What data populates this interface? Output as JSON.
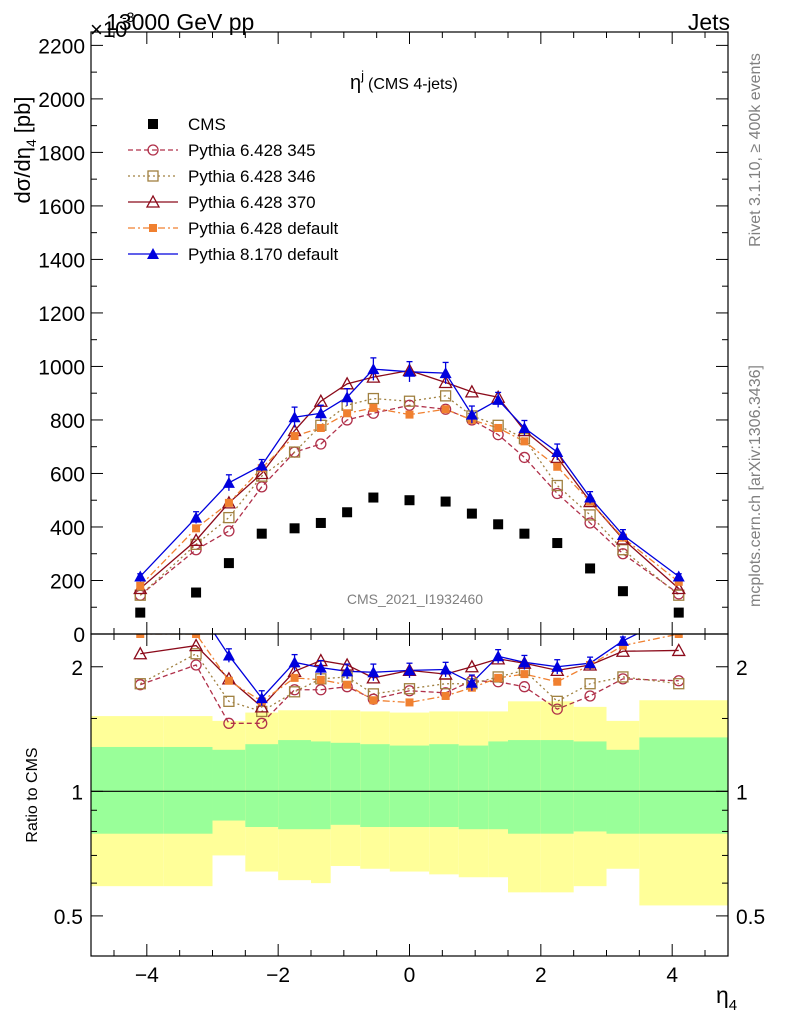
{
  "header": {
    "left": "13000 GeV pp",
    "right": "Jets",
    "exponent": "×10",
    "exponent_power": "-3"
  },
  "side_labels": {
    "rivet": "Rivet 3.1.10, ≥ 400k events",
    "mcplots": "mcplots.cern.ch [arXiv:1306.3436]"
  },
  "watermark": "CMS_2021_I1932460",
  "plot_title": "η",
  "plot_title_sup": "j",
  "plot_title_suffix": "(CMS 4-jets)",
  "ylabel_main": "dσ/dη",
  "ylabel_main_sub": "4",
  "ylabel_main_unit": "[pb]",
  "ylabel_ratio": "Ratio to CMS",
  "xlabel": "η",
  "xlabel_sub": "4",
  "chart_data": [
    {
      "type": "scatter",
      "panel": "main",
      "xlim": [
        -4.85,
        4.85
      ],
      "ylim": [
        0,
        2250
      ],
      "xticks": [
        -4,
        -2,
        0,
        2,
        4
      ],
      "yticks": [
        0,
        200,
        400,
        600,
        800,
        1000,
        1200,
        1400,
        1600,
        1800,
        2000,
        2200
      ],
      "x": [
        -4.1,
        -3.25,
        -2.75,
        -2.25,
        -1.75,
        -1.35,
        -0.95,
        -0.55,
        0,
        0.55,
        0.95,
        1.35,
        1.75,
        2.25,
        2.75,
        3.25,
        4.1
      ],
      "series": [
        {
          "name": "CMS",
          "color": "#000000",
          "marker": "square-filled",
          "line": "none",
          "values": [
            80,
            155,
            265,
            375,
            395,
            415,
            455,
            510,
            500,
            495,
            450,
            410,
            375,
            340,
            245,
            160,
            80
          ]
        },
        {
          "name": "Pythia 6.428 345",
          "color": "#b0304a",
          "marker": "circle-open",
          "line": "dashed",
          "values": [
            145,
            315,
            385,
            550,
            680,
            710,
            800,
            825,
            855,
            840,
            800,
            745,
            660,
            525,
            415,
            300,
            150
          ]
        },
        {
          "name": "Pythia 6.428 346",
          "color": "#a08040",
          "marker": "square-open",
          "line": "dotted",
          "values": [
            145,
            335,
            435,
            590,
            680,
            780,
            855,
            880,
            870,
            890,
            815,
            780,
            730,
            555,
            445,
            315,
            145
          ]
        },
        {
          "name": "Pythia 6.428 370",
          "color": "#8b0a1a",
          "marker": "triangle-open",
          "line": "solid",
          "values": [
            170,
            350,
            490,
            600,
            760,
            870,
            935,
            960,
            985,
            940,
            905,
            885,
            760,
            660,
            495,
            355,
            170
          ]
        },
        {
          "name": "Pythia 6.428 default",
          "color": "#f08030",
          "marker": "square-filled-small",
          "line": "dashdot",
          "values": [
            180,
            395,
            490,
            620,
            740,
            770,
            825,
            845,
            820,
            840,
            800,
            770,
            720,
            625,
            495,
            360,
            195
          ]
        },
        {
          "name": "Pythia 8.170 default",
          "color": "#0000dd",
          "marker": "triangle-filled",
          "line": "solid",
          "errors": [
            10,
            22,
            30,
            22,
            38,
            30,
            32,
            42,
            38,
            40,
            32,
            28,
            28,
            30,
            22,
            20,
            10
          ],
          "values": [
            215,
            435,
            565,
            630,
            810,
            825,
            885,
            990,
            980,
            975,
            820,
            875,
            770,
            680,
            510,
            370,
            215
          ]
        }
      ]
    },
    {
      "type": "scatter",
      "panel": "ratio",
      "ylabel": "Ratio to CMS",
      "xlabel": "η4",
      "xlim": [
        -4.85,
        4.85
      ],
      "ylim_log": [
        0.4,
        2.4
      ],
      "yticks": [
        0.5,
        1,
        2
      ],
      "ytick_labels": [
        "0.5",
        "1",
        "2"
      ],
      "bands": {
        "edges": [
          -4.85,
          -3.75,
          -3.0,
          -2.5,
          -2.0,
          -1.5,
          -1.2,
          -0.75,
          -0.3,
          0.3,
          0.75,
          1.2,
          1.5,
          2.0,
          2.5,
          3.0,
          3.5,
          4.85
        ],
        "green_low": [
          0.79,
          0.79,
          0.85,
          0.82,
          0.81,
          0.81,
          0.83,
          0.82,
          0.82,
          0.82,
          0.81,
          0.81,
          0.79,
          0.79,
          0.8,
          0.79,
          0.79
        ],
        "green_high": [
          1.28,
          1.28,
          1.26,
          1.3,
          1.33,
          1.32,
          1.31,
          1.3,
          1.29,
          1.3,
          1.29,
          1.32,
          1.33,
          1.33,
          1.32,
          1.26,
          1.35
        ],
        "yellow_low": [
          0.59,
          0.59,
          0.7,
          0.64,
          0.61,
          0.6,
          0.66,
          0.65,
          0.64,
          0.63,
          0.62,
          0.62,
          0.57,
          0.57,
          0.59,
          0.65,
          0.53
        ],
        "yellow_high": [
          1.52,
          1.52,
          1.48,
          1.55,
          1.57,
          1.57,
          1.57,
          1.56,
          1.55,
          1.56,
          1.56,
          1.56,
          1.65,
          1.65,
          1.6,
          1.48,
          1.66
        ]
      },
      "x": [
        -4.1,
        -3.25,
        -2.75,
        -2.25,
        -1.75,
        -1.35,
        -0.95,
        -0.55,
        0,
        0.55,
        0.95,
        1.35,
        1.75,
        2.25,
        2.75,
        3.25,
        4.1
      ],
      "series": [
        {
          "name": "Pythia 6.428 345",
          "color": "#b0304a",
          "marker": "circle-open",
          "line": "dashed",
          "values": [
            1.81,
            2.02,
            1.46,
            1.46,
            1.76,
            1.76,
            1.79,
            1.67,
            1.75,
            1.73,
            1.85,
            1.84,
            1.79,
            1.58,
            1.7,
            1.87,
            1.85
          ]
        },
        {
          "name": "Pythia 6.428 346",
          "color": "#a08040",
          "marker": "square-open",
          "line": "dotted",
          "values": [
            1.82,
            2.15,
            1.65,
            1.56,
            1.74,
            1.87,
            1.89,
            1.72,
            1.77,
            1.82,
            1.82,
            1.89,
            1.96,
            1.65,
            1.82,
            1.89,
            1.82
          ]
        },
        {
          "name": "Pythia 6.428 370",
          "color": "#8b0a1a",
          "marker": "triangle-open",
          "line": "solid",
          "values": [
            2.15,
            2.25,
            1.87,
            1.6,
            1.95,
            2.07,
            2.02,
            1.88,
            1.96,
            1.92,
            2.0,
            2.09,
            2.04,
            1.96,
            2.02,
            2.18,
            2.19
          ]
        },
        {
          "name": "Pythia 6.428 default",
          "color": "#f08030",
          "marker": "square-filled-small",
          "line": "dashdot",
          "values": [
            2.4,
            2.4,
            1.85,
            1.65,
            1.88,
            1.86,
            1.81,
            1.66,
            1.64,
            1.7,
            1.78,
            1.88,
            1.92,
            1.84,
            2.02,
            2.25,
            2.4
          ]
        },
        {
          "name": "Pythia 8.170 default",
          "color": "#0000dd",
          "marker": "triangle-filled",
          "line": "solid",
          "errors": [
            0.02,
            0.06,
            0.08,
            0.07,
            0.09,
            0.08,
            0.08,
            0.09,
            0.08,
            0.08,
            0.08,
            0.08,
            0.08,
            0.08,
            0.07,
            0.05,
            0.02
          ],
          "values": [
            2.69,
            2.81,
            2.13,
            1.68,
            2.05,
            1.99,
            1.95,
            1.94,
            1.96,
            1.97,
            1.83,
            2.12,
            2.05,
            2.0,
            2.04,
            2.31,
            2.69
          ]
        }
      ]
    }
  ]
}
